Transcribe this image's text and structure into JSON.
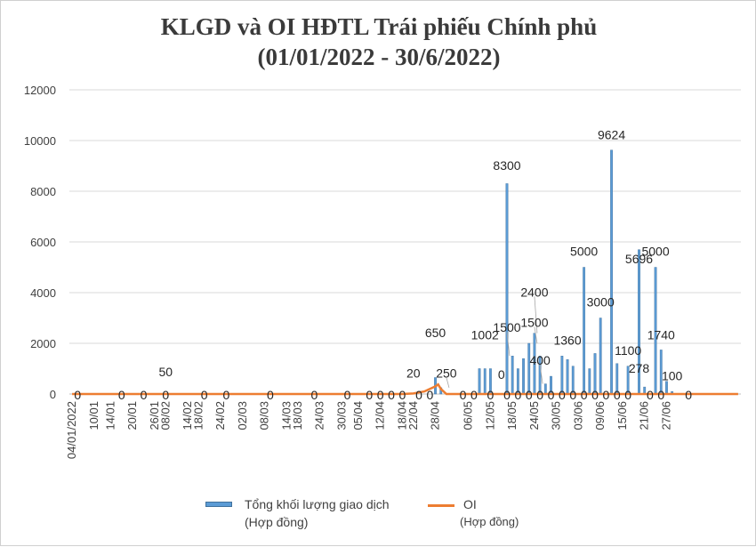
{
  "chart_data": {
    "type": "bar",
    "title": "KLGD và OI HĐTL Trái phiếu Chính phủ",
    "subtitle": "(01/01/2022 - 30/6/2022)",
    "ylim": [
      0,
      12000
    ],
    "y_ticks": [
      "0",
      "2000",
      "4000",
      "6000",
      "8000",
      "10000",
      "12000"
    ],
    "x_tick_labels": [
      "04/01/2022",
      "10/01",
      "14/01",
      "20/01",
      "26/01",
      "08/02",
      "14/02",
      "18/02",
      "24/02",
      "02/03",
      "08/03",
      "14/03",
      "18/03",
      "24/03",
      "30/03",
      "05/04",
      "12/04",
      "18/04",
      "22/04",
      "28/04",
      "06/05",
      "12/05",
      "18/05",
      "24/05",
      "30/05",
      "03/06",
      "09/06",
      "15/06",
      "21/06",
      "27/06"
    ],
    "x_tick_index": [
      0,
      4,
      7,
      11,
      15,
      17,
      21,
      23,
      27,
      31,
      35,
      39,
      41,
      45,
      49,
      52,
      56,
      60,
      62,
      66,
      72,
      76,
      80,
      84,
      88,
      92,
      96,
      100,
      104,
      108
    ],
    "num_days": 122,
    "series": [
      {
        "name": "Tổng khối lượng giao dịch",
        "name_sub": "(Hợp đồng)",
        "kind": "bar",
        "color": "#5b9bd5",
        "points": [
          {
            "i": 66,
            "v": 650
          },
          {
            "i": 67,
            "v": 250
          },
          {
            "i": 74,
            "v": 1002
          },
          {
            "i": 75,
            "v": 1000
          },
          {
            "i": 76,
            "v": 1000
          },
          {
            "i": 78,
            "v": 0
          },
          {
            "i": 79,
            "v": 8300
          },
          {
            "i": 80,
            "v": 1500
          },
          {
            "i": 81,
            "v": 1000
          },
          {
            "i": 82,
            "v": 1400
          },
          {
            "i": 83,
            "v": 2000
          },
          {
            "i": 84,
            "v": 2400
          },
          {
            "i": 85,
            "v": 1500
          },
          {
            "i": 86,
            "v": 400
          },
          {
            "i": 87,
            "v": 700
          },
          {
            "i": 89,
            "v": 1500
          },
          {
            "i": 90,
            "v": 1360
          },
          {
            "i": 91,
            "v": 1100
          },
          {
            "i": 93,
            "v": 5000
          },
          {
            "i": 94,
            "v": 1000
          },
          {
            "i": 95,
            "v": 1600
          },
          {
            "i": 96,
            "v": 3000
          },
          {
            "i": 98,
            "v": 9624
          },
          {
            "i": 99,
            "v": 1200
          },
          {
            "i": 101,
            "v": 1100
          },
          {
            "i": 103,
            "v": 5696
          },
          {
            "i": 104,
            "v": 278
          },
          {
            "i": 106,
            "v": 5000
          },
          {
            "i": 107,
            "v": 1740
          },
          {
            "i": 108,
            "v": 500
          },
          {
            "i": 109,
            "v": 100
          }
        ]
      },
      {
        "name": "OI",
        "name_sub": "(Hợp đồng)",
        "kind": "line",
        "color": "#ed7d31",
        "points": [
          {
            "i": 0,
            "v": 0
          },
          {
            "i": 60,
            "v": 0
          },
          {
            "i": 62,
            "v": 20
          },
          {
            "i": 64,
            "v": 100
          },
          {
            "i": 66,
            "v": 300
          },
          {
            "i": 66.5,
            "v": 380
          },
          {
            "i": 67,
            "v": 200
          },
          {
            "i": 68,
            "v": 0
          },
          {
            "i": 121,
            "v": 0
          }
        ]
      }
    ],
    "data_labels": [
      {
        "i": 1,
        "text": "0"
      },
      {
        "i": 9,
        "text": "0"
      },
      {
        "i": 13,
        "text": "0"
      },
      {
        "i": 17,
        "text": "0"
      },
      {
        "i": 17,
        "text": "50",
        "v": 700
      },
      {
        "i": 24,
        "text": "0"
      },
      {
        "i": 28,
        "text": "0"
      },
      {
        "i": 36,
        "text": "0"
      },
      {
        "i": 44,
        "text": "0"
      },
      {
        "i": 50,
        "text": "0"
      },
      {
        "i": 54,
        "text": "0"
      },
      {
        "i": 56,
        "text": "0"
      },
      {
        "i": 58,
        "text": "0"
      },
      {
        "i": 60,
        "text": "0"
      },
      {
        "i": 62,
        "text": "20",
        "v": 650
      },
      {
        "i": 63,
        "text": "0"
      },
      {
        "i": 65,
        "text": "0"
      },
      {
        "i": 66,
        "text": "650",
        "v": 2250
      },
      {
        "i": 68,
        "text": "250",
        "v": 650
      },
      {
        "i": 71,
        "text": "0"
      },
      {
        "i": 73,
        "text": "0"
      },
      {
        "i": 75,
        "text": "1002",
        "v": 2150
      },
      {
        "i": 76,
        "text": "0"
      },
      {
        "i": 79,
        "text": "1500",
        "v": 2450
      },
      {
        "i": 78,
        "text": "0",
        "v": 600
      },
      {
        "i": 79,
        "text": "0"
      },
      {
        "i": 79,
        "text": "8300",
        "v": 8850
      },
      {
        "i": 81,
        "text": "0"
      },
      {
        "i": 83,
        "text": "0"
      },
      {
        "i": 84,
        "text": "1500",
        "v": 2650
      },
      {
        "i": 84,
        "text": "2400",
        "v": 3850
      },
      {
        "i": 85,
        "text": "400",
        "v": 1150
      },
      {
        "i": 85,
        "text": "0"
      },
      {
        "i": 87,
        "text": "0"
      },
      {
        "i": 89,
        "text": "0"
      },
      {
        "i": 90,
        "text": "1360",
        "v": 1950
      },
      {
        "i": 91,
        "text": "0"
      },
      {
        "i": 93,
        "text": "5000",
        "v": 5450
      },
      {
        "i": 93,
        "text": "0"
      },
      {
        "i": 95,
        "text": "0"
      },
      {
        "i": 96,
        "text": "3000",
        "v": 3450
      },
      {
        "i": 97,
        "text": "0"
      },
      {
        "i": 98,
        "text": "9624",
        "v": 10050
      },
      {
        "i": 99,
        "text": "0"
      },
      {
        "i": 101,
        "text": "1100",
        "v": 1550
      },
      {
        "i": 101,
        "text": "0"
      },
      {
        "i": 103,
        "text": "5696",
        "v": 5150
      },
      {
        "i": 103,
        "text": "278",
        "v": 850
      },
      {
        "i": 105,
        "text": "0"
      },
      {
        "i": 106,
        "text": "5000",
        "v": 5450
      },
      {
        "i": 107,
        "text": "1740",
        "v": 2150
      },
      {
        "i": 107,
        "text": "0"
      },
      {
        "i": 109,
        "text": "100",
        "v": 550
      },
      {
        "i": 112,
        "text": "0"
      }
    ],
    "label_leaders": [
      {
        "i": 68,
        "v": 650,
        "to_v": 250
      },
      {
        "i": 84,
        "v": 2650,
        "to_v": 2000
      },
      {
        "i": 84,
        "v": 3850,
        "to_v": 2400
      },
      {
        "i": 85,
        "v": 1150,
        "to_v": 400
      },
      {
        "i": 79,
        "v": 2450,
        "to_v": 1500
      }
    ],
    "legend_placement": "bottom",
    "grid": true
  }
}
